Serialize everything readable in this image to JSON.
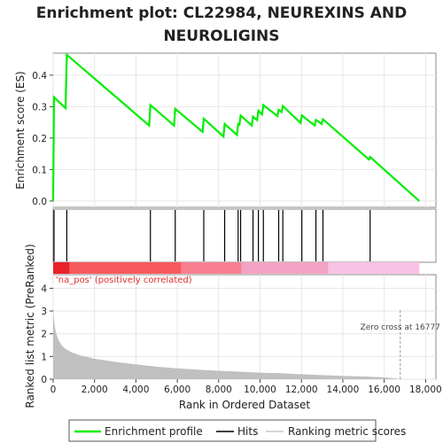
{
  "chart_data": {
    "type": "line",
    "title_lines": [
      "Enrichment plot: CL22984, NEUREXINS AND",
      "NEUROLIGINS"
    ],
    "es_panel": {
      "ylabel": "Enrichment score (ES)",
      "ylim": [
        -0.02,
        0.47
      ],
      "yticks": [
        0.0,
        0.1,
        0.2,
        0.3,
        0.4
      ],
      "ytick_labels": [
        "0.0",
        "0.1",
        "0.2",
        "0.3",
        "0.4"
      ],
      "series_color": "#00ee00",
      "points": [
        [
          0,
          0.0
        ],
        [
          40,
          0.33
        ],
        [
          600,
          0.295
        ],
        [
          660,
          0.465
        ],
        [
          4640,
          0.24
        ],
        [
          4700,
          0.305
        ],
        [
          5840,
          0.24
        ],
        [
          5900,
          0.293
        ],
        [
          7220,
          0.22
        ],
        [
          7280,
          0.262
        ],
        [
          8230,
          0.205
        ],
        [
          8290,
          0.245
        ],
        [
          8880,
          0.21
        ],
        [
          8940,
          0.245
        ],
        [
          9000,
          0.243
        ],
        [
          9060,
          0.272
        ],
        [
          9600,
          0.24
        ],
        [
          9660,
          0.268
        ],
        [
          9860,
          0.257
        ],
        [
          9920,
          0.287
        ],
        [
          10100,
          0.275
        ],
        [
          10160,
          0.305
        ],
        [
          10840,
          0.27
        ],
        [
          10900,
          0.29
        ],
        [
          11040,
          0.283
        ],
        [
          11100,
          0.302
        ],
        [
          11960,
          0.248
        ],
        [
          12020,
          0.272
        ],
        [
          12640,
          0.24
        ],
        [
          12700,
          0.258
        ],
        [
          12980,
          0.245
        ],
        [
          13040,
          0.26
        ],
        [
          15260,
          0.132
        ],
        [
          15320,
          0.14
        ],
        [
          17700,
          0.0
        ]
      ]
    },
    "hits": [
      40,
      660,
      4700,
      5900,
      7280,
      8290,
      8940,
      9060,
      9660,
      9920,
      10160,
      10900,
      11100,
      12020,
      12700,
      13040,
      15320
    ],
    "rank_bar": {
      "segments": [
        {
          "from": 0,
          "to": 800,
          "color": "#e8232a"
        },
        {
          "from": 800,
          "to": 6200,
          "color": "#f75a5e"
        },
        {
          "from": 6200,
          "to": 9100,
          "color": "#f97f90"
        },
        {
          "from": 9100,
          "to": 13300,
          "color": "#f3a3c4"
        },
        {
          "from": 13300,
          "to": 17700,
          "color": "#f8c2e6"
        }
      ],
      "positive_label": "'na_pos' (positively correlated)"
    },
    "metric_panel": {
      "ylabel": "Ranked list metric (PreRanked)",
      "ylim": [
        0,
        4.6
      ],
      "yticks": [
        0,
        1,
        2,
        3,
        4
      ],
      "ytick_labels": [
        "0",
        "1",
        "2",
        "3",
        "4"
      ],
      "fill_color": "#c0c0c0",
      "profile": [
        [
          0,
          3.15
        ],
        [
          30,
          2.7
        ],
        [
          80,
          2.3
        ],
        [
          150,
          2.0
        ],
        [
          250,
          1.75
        ],
        [
          400,
          1.5
        ],
        [
          600,
          1.33
        ],
        [
          900,
          1.18
        ],
        [
          1300,
          1.05
        ],
        [
          2000,
          0.9
        ],
        [
          3000,
          0.76
        ],
        [
          4000,
          0.65
        ],
        [
          5000,
          0.55
        ],
        [
          6000,
          0.48
        ],
        [
          7000,
          0.42
        ],
        [
          8000,
          0.37
        ],
        [
          9000,
          0.33
        ],
        [
          10000,
          0.29
        ],
        [
          11000,
          0.26
        ],
        [
          12000,
          0.22
        ],
        [
          13000,
          0.18
        ],
        [
          14000,
          0.15
        ],
        [
          15000,
          0.12
        ],
        [
          16000,
          0.08
        ],
        [
          16500,
          0.04
        ],
        [
          16777,
          0.0
        ],
        [
          17000,
          -0.01
        ],
        [
          17700,
          -0.02
        ]
      ],
      "zero_cross": 16777,
      "zero_cross_label": "Zero cross at 16777"
    },
    "xlabel": "Rank in Ordered Dataset",
    "xlim": [
      0,
      18500
    ],
    "xticks": [
      0,
      2000,
      4000,
      6000,
      8000,
      10000,
      12000,
      14000,
      16000,
      18000
    ],
    "xtick_labels": [
      "0",
      "2,000",
      "4,000",
      "6,000",
      "8,000",
      "10,000",
      "12,000",
      "14,000",
      "16,000",
      "18,000"
    ],
    "legend": {
      "enrichment": "Enrichment profile",
      "hits": "Hits",
      "ranking": "Ranking metric scores"
    }
  }
}
